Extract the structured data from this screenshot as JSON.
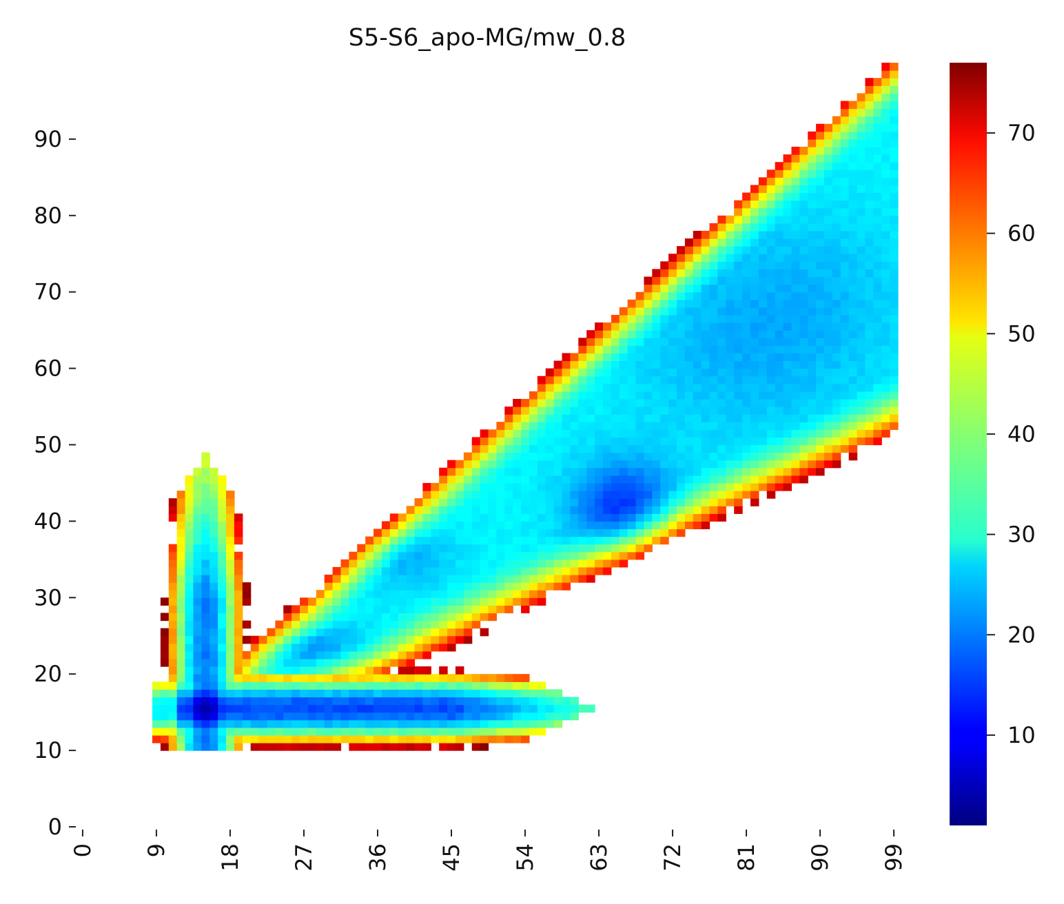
{
  "chart_data": {
    "type": "heatmap",
    "title": "S5-S6_apo-MG/mw_0.8",
    "xlabel": "",
    "ylabel": "",
    "x_range": [
      0,
      100
    ],
    "y_range": [
      0,
      100
    ],
    "x_tick_values": [
      0,
      9,
      18,
      27,
      36,
      45,
      54,
      63,
      72,
      81,
      90,
      99
    ],
    "x_tick_labels": [
      "0",
      "9",
      "18",
      "27",
      "36",
      "45",
      "54",
      "63",
      "72",
      "81",
      "90",
      "99"
    ],
    "y_tick_values": [
      0,
      10,
      20,
      30,
      40,
      50,
      60,
      70,
      80,
      90
    ],
    "y_tick_labels": [
      "0",
      "10",
      "20",
      "30",
      "40",
      "50",
      "60",
      "70",
      "80",
      "90"
    ],
    "colorbar": {
      "colormap": "jet",
      "range": [
        1,
        77
      ],
      "tick_values": [
        10,
        20,
        30,
        40,
        50,
        60,
        70
      ],
      "tick_labels": [
        "10",
        "20",
        "30",
        "40",
        "50",
        "60",
        "70"
      ]
    },
    "value_model": {
      "description": "approximate free-energy surface; cells outside the populated region are blank",
      "base_value": 29,
      "populated_region": {
        "lower_diagonal": {
          "slope": 0.51,
          "intercept": 0,
          "extra_points": [
            [
              60,
              21
            ],
            [
              64,
              21
            ],
            [
              70,
              17
            ],
            [
              75,
              16
            ]
          ]
        },
        "upper_diagonal": {
          "slope": 0.98,
          "intercept": 3.5
        },
        "x_max": 99
      },
      "wells": [
        {
          "x": 66,
          "y": 41,
          "depth": 15,
          "sigma_x": 4.5,
          "sigma_y": 4.5
        },
        {
          "x": 38,
          "y": 35,
          "depth": 6,
          "sigma_x": 5,
          "sigma_y": 3
        },
        {
          "x": 28,
          "y": 23,
          "depth": 7,
          "sigma_x": 8,
          "sigma_y": 2
        },
        {
          "x": 88,
          "y": 70,
          "depth": 4,
          "sigma_x": 10,
          "sigma_y": 8
        },
        {
          "x": 80,
          "y": 60,
          "depth": 4,
          "sigma_x": 10,
          "sigma_y": 8
        }
      ],
      "bands": [
        {
          "orientation": "horizontal",
          "center": 15,
          "from": 9,
          "to": 62,
          "min_value": 16,
          "half_width": 1.5
        },
        {
          "orientation": "vertical",
          "center": 15,
          "from": 10,
          "to": 48,
          "min_value": 20,
          "half_width": 1.5
        }
      ],
      "deep_minimum": {
        "x": 15,
        "y": 15,
        "value": 4
      }
    }
  }
}
